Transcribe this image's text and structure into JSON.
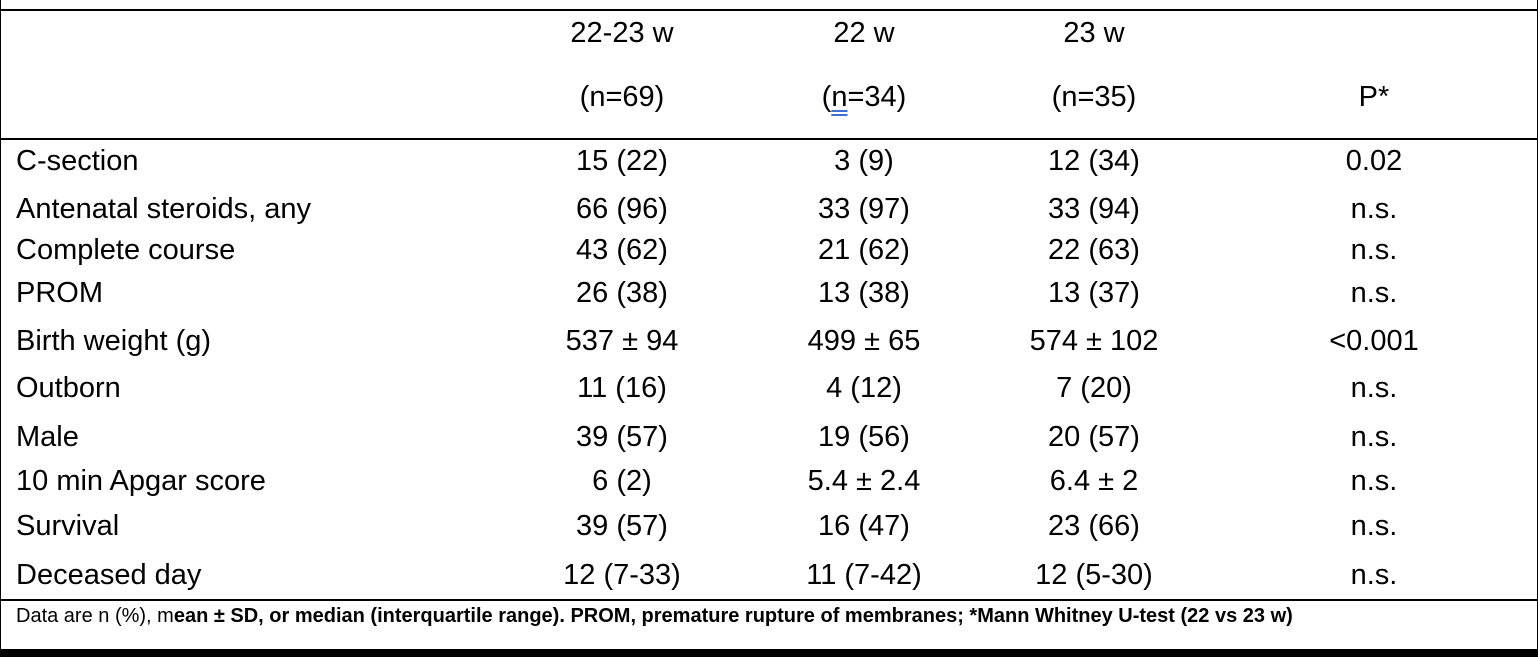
{
  "table": {
    "columns": [
      {
        "group": "22-23 w",
        "n": "(n=69)"
      },
      {
        "group": "22 w",
        "n_prefix": "(",
        "n_letter": "n",
        "n_suffix": "=34)"
      },
      {
        "group": "23 w",
        "n": "(n=35)"
      },
      {
        "group": "",
        "n": "P*"
      }
    ],
    "rows": [
      {
        "label": "C-section",
        "values": [
          "15 (22)",
          "3 (9)",
          "12 (34)",
          "0.02"
        ]
      },
      {
        "label": "Antenatal steroids, any",
        "values": [
          "66 (96)",
          "33 (97)",
          "33 (94)",
          "n.s."
        ]
      },
      {
        "label": "Complete course",
        "values": [
          "43 (62)",
          "21 (62)",
          "22 (63)",
          "n.s."
        ]
      },
      {
        "label": "PROM",
        "values": [
          "26 (38)",
          "13 (38)",
          "13 (37)",
          "n.s."
        ]
      },
      {
        "label": "Birth weight (g)",
        "values": [
          "537 ± 94",
          "499 ± 65",
          "574 ± 102",
          "<0.001"
        ]
      },
      {
        "label": "Outborn",
        "values": [
          "11 (16)",
          "4 (12)",
          "7 (20)",
          "n.s."
        ]
      },
      {
        "label": "Male",
        "values": [
          "39 (57)",
          "19 (56)",
          "20 (57)",
          "n.s."
        ]
      },
      {
        "label": "10 min Apgar score",
        "values": [
          "6 (2)",
          "5.4 ± 2.4",
          "6.4 ± 2",
          "n.s."
        ]
      },
      {
        "label": "Survival",
        "values": [
          "39 (57)",
          "16 (47)",
          "23 (66)",
          "n.s."
        ]
      },
      {
        "label": "Deceased day",
        "values": [
          "12 (7-33)",
          "11 (7-42)",
          "12 (5-30)",
          "n.s."
        ]
      }
    ],
    "footnote": {
      "plain": "Data are n (%), m",
      "bold": "ean ± SD, or median (interquartile range). PROM, premature rupture of membranes; *Mann Whitney U-test (22 vs 23 w)"
    }
  }
}
